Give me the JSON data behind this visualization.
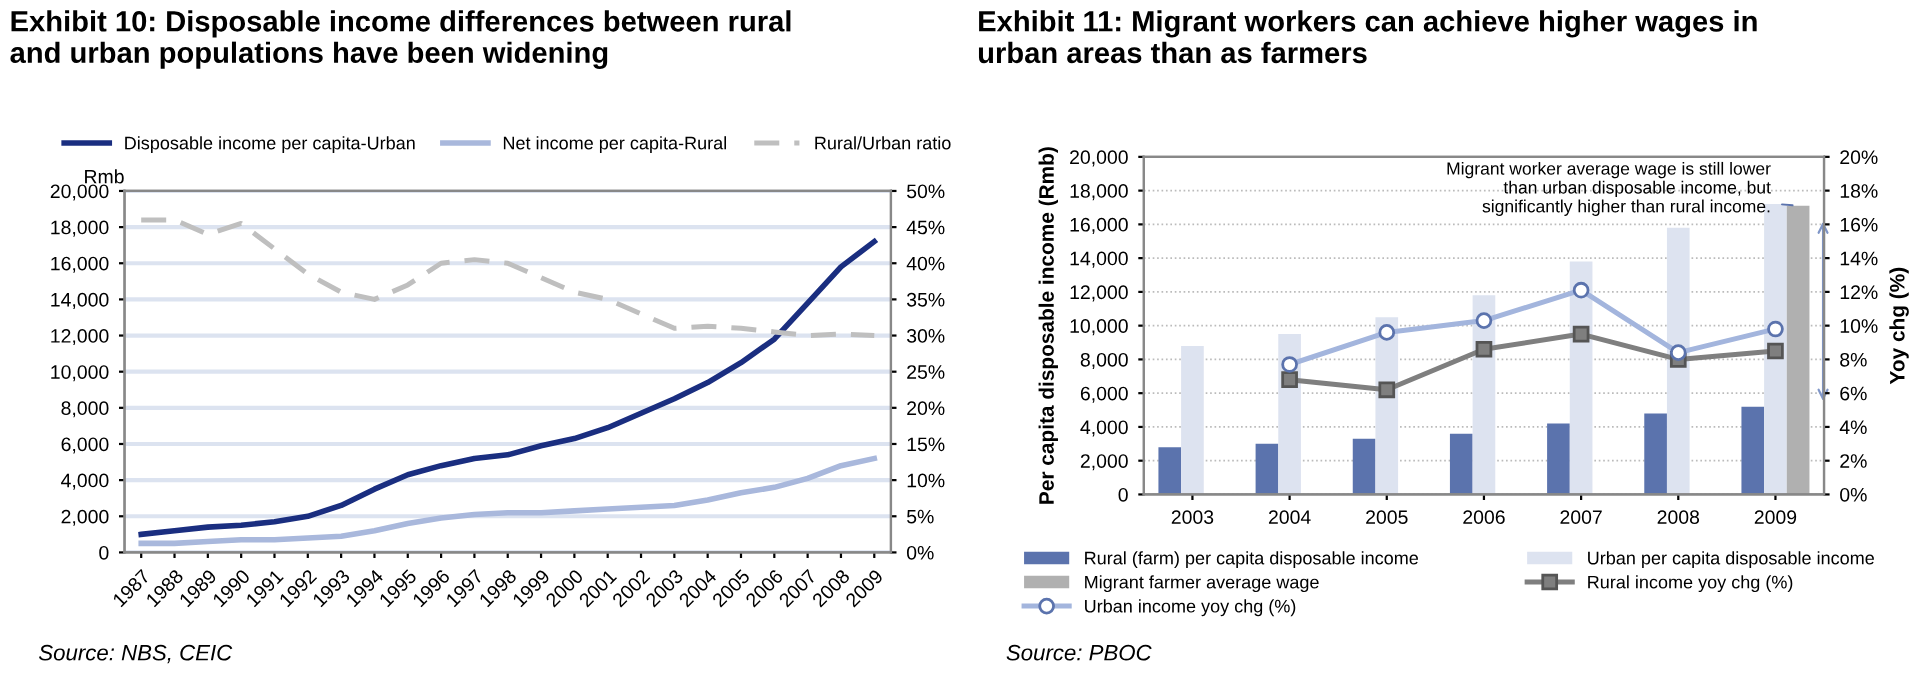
{
  "chart_data": [
    {
      "type": "line",
      "title": "Exhibit 10: Disposable income differences between rural\nand urban populations have been widening",
      "ylabel": "Rmb",
      "categories": [
        "1987",
        "1988",
        "1989",
        "1990",
        "1991",
        "1992",
        "1993",
        "1994",
        "1995",
        "1996",
        "1997",
        "1998",
        "1999",
        "2000",
        "2001",
        "2002",
        "2003",
        "2004",
        "2005",
        "2006",
        "2007",
        "2008",
        "2009"
      ],
      "series": [
        {
          "name": "Disposable income per capita-Urban",
          "color": "#1a2e80",
          "values": [
            1000,
            1200,
            1400,
            1500,
            1700,
            2000,
            2600,
            3500,
            4300,
            4800,
            5200,
            5400,
            5900,
            6300,
            6900,
            7700,
            8500,
            9400,
            10500,
            11800,
            13800,
            15800,
            17200
          ]
        },
        {
          "name": "Net income per capita-Rural",
          "color": "#a9b8dc",
          "values": [
            500,
            500,
            600,
            700,
            700,
            800,
            900,
            1200,
            1600,
            1900,
            2100,
            2200,
            2200,
            2300,
            2400,
            2500,
            2600,
            2900,
            3300,
            3600,
            4100,
            4800,
            5200
          ]
        },
        {
          "name": "Rural/Urban ratio",
          "color": "#bfbfbf",
          "axis": "y2",
          "line_style": "dashed",
          "values": [
            46,
            46,
            44,
            45.5,
            42,
            38.5,
            36,
            35,
            37,
            40,
            40.5,
            40,
            38,
            36,
            35,
            33,
            31,
            31.3,
            31,
            30.5,
            30,
            30.2,
            30
          ]
        }
      ],
      "ylim": [
        0,
        20000
      ],
      "yticks": [
        0,
        {
          "value": 2000,
          "label": "2,000"
        },
        {
          "value": 4000,
          "label": "4,000"
        },
        {
          "value": 6000,
          "label": "6,000"
        },
        {
          "value": 8000,
          "label": "8,000"
        },
        {
          "value": 10000,
          "label": "10,000"
        },
        {
          "value": 12000,
          "label": "12,000"
        },
        {
          "value": 14000,
          "label": "14,000"
        },
        {
          "value": 16000,
          "label": "16,000"
        },
        {
          "value": 18000,
          "label": "18,000"
        },
        {
          "value": 20000,
          "label": "20,000"
        }
      ],
      "y2lim": [
        0,
        50
      ],
      "y2ticks": [
        {
          "value": 0,
          "label": "0%"
        },
        {
          "value": 5,
          "label": "5%"
        },
        {
          "value": 10,
          "label": "10%"
        },
        {
          "value": 15,
          "label": "15%"
        },
        {
          "value": 20,
          "label": "20%"
        },
        {
          "value": 25,
          "label": "25%"
        },
        {
          "value": 30,
          "label": "30%"
        },
        {
          "value": 35,
          "label": "35%"
        },
        {
          "value": 40,
          "label": "40%"
        },
        {
          "value": 45,
          "label": "45%"
        },
        {
          "value": 50,
          "label": "50%"
        }
      ],
      "grid": "y",
      "legend": "top",
      "annotations": [
        "Source: NBS, CEIC"
      ]
    },
    {
      "type": "bar",
      "title": "Exhibit 11: Migrant workers can achieve higher wages in\nurban areas than as farmers",
      "ylabel": "Per capita disposable income (Rmb)",
      "y2label": "Yoy chg (%)",
      "categories": [
        "2003",
        "2004",
        "2005",
        "2006",
        "2007",
        "2008",
        "2009"
      ],
      "series": [
        {
          "name": "Rural (farm) per capita disposable income",
          "color": "#5b73ad",
          "values": [
            2800,
            3000,
            3300,
            3600,
            4200,
            4800,
            5200
          ]
        },
        {
          "name": "Urban per capita disposable income",
          "color": "#dde3f0",
          "values": [
            8800,
            9500,
            10500,
            11800,
            13800,
            15800,
            17200
          ]
        },
        {
          "name": "Migrant farmer average wage",
          "color": "#b0b0b0",
          "values": [
            null,
            null,
            null,
            null,
            null,
            null,
            17100
          ]
        },
        {
          "name": "Rural income yoy chg (%)",
          "type": "line",
          "axis": "y2",
          "color": "#7f7f7f",
          "marker": "square",
          "values": [
            null,
            6.8,
            6.2,
            8.6,
            9.5,
            8.0,
            8.5
          ]
        },
        {
          "name": "Urban income yoy chg (%)",
          "type": "line",
          "axis": "y2",
          "color": "#a3b5dd",
          "marker": "circle",
          "values": [
            null,
            7.7,
            9.6,
            10.3,
            12.1,
            8.4,
            9.8
          ]
        }
      ],
      "ylim": [
        0,
        20000
      ],
      "yticks": [
        0,
        {
          "value": 2000,
          "label": "2,000"
        },
        {
          "value": 4000,
          "label": "4,000"
        },
        {
          "value": 6000,
          "label": "6,000"
        },
        {
          "value": 8000,
          "label": "8,000"
        },
        {
          "value": 10000,
          "label": "10,000"
        },
        {
          "value": 12000,
          "label": "12,000"
        },
        {
          "value": 14000,
          "label": "14,000"
        },
        {
          "value": 16000,
          "label": "16,000"
        },
        {
          "value": 18000,
          "label": "18,000"
        },
        {
          "value": 20000,
          "label": "20,000"
        }
      ],
      "y2lim": [
        0,
        20
      ],
      "y2ticks": [
        {
          "value": 0,
          "label": "0%"
        },
        {
          "value": 2,
          "label": "2%"
        },
        {
          "value": 4,
          "label": "4%"
        },
        {
          "value": 6,
          "label": "6%"
        },
        {
          "value": 8,
          "label": "8%"
        },
        {
          "value": 10,
          "label": "10%"
        },
        {
          "value": 12,
          "label": "12%"
        },
        {
          "value": 14,
          "label": "14%"
        },
        {
          "value": 16,
          "label": "16%"
        },
        {
          "value": 18,
          "label": "18%"
        },
        {
          "value": 20,
          "label": "20%"
        }
      ],
      "grid": "y",
      "legend": "bottom",
      "annotations": [
        {
          "text": "Migrant worker average wage is still lower\nthan urban disposable income, but\nsignificantly higher than rural income.",
          "x": "2009",
          "y": 17100
        },
        "Source: PBOC"
      ]
    }
  ]
}
